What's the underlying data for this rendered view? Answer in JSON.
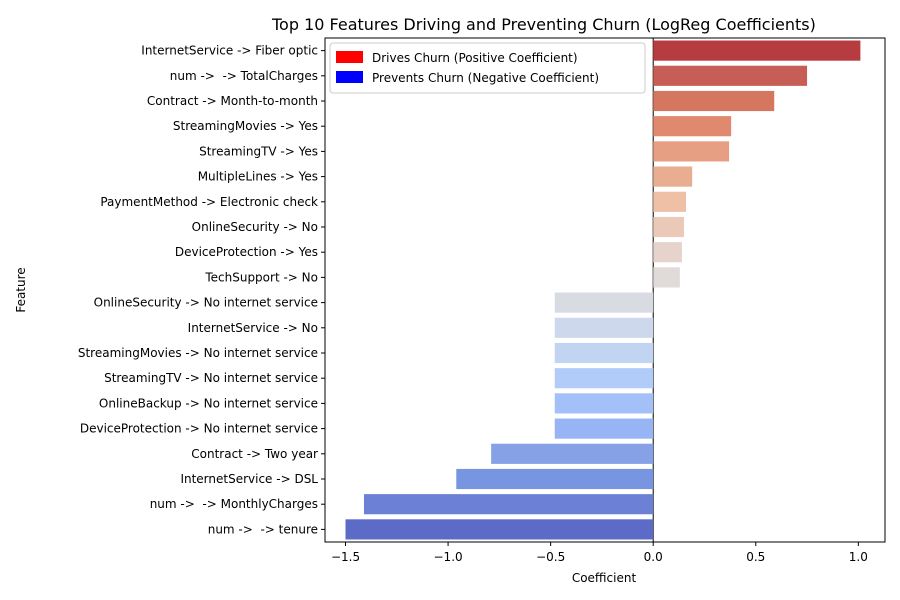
{
  "chart_data": {
    "type": "bar",
    "orientation": "horizontal",
    "title": "Top 10 Features Driving and Preventing Churn (LogReg Coefficients)",
    "xlabel": "Coefficient",
    "ylabel": "Feature",
    "xlim": [
      -1.6,
      1.13
    ],
    "xticks": [
      -1.5,
      -1.0,
      -0.5,
      0.0,
      0.5,
      1.0
    ],
    "xtick_labels": [
      "−1.5",
      "−1.0",
      "−0.5",
      "0.0",
      "0.5",
      "1.0"
    ],
    "grid": false,
    "legend_position": "top-left",
    "legend": [
      {
        "label": "Drives Churn (Positive Coefficient)",
        "color": "#ff0000"
      },
      {
        "label": "Prevents Churn (Negative Coefficient)",
        "color": "#0000ff"
      }
    ],
    "categories": [
      "InternetService -> Fiber optic",
      "num ->  -> TotalCharges",
      "Contract -> Month-to-month",
      "StreamingMovies -> Yes",
      "StreamingTV -> Yes",
      "MultipleLines -> Yes",
      "PaymentMethod -> Electronic check",
      "OnlineSecurity -> No",
      "DeviceProtection -> Yes",
      "TechSupport -> No",
      "OnlineSecurity -> No internet service",
      "InternetService -> No",
      "StreamingMovies -> No internet service",
      "StreamingTV -> No internet service",
      "OnlineBackup -> No internet service",
      "DeviceProtection -> No internet service",
      "Contract -> Two year",
      "InternetService -> DSL",
      "num ->  -> MonthlyCharges",
      "num ->  -> tenure"
    ],
    "values": [
      1.01,
      0.75,
      0.59,
      0.38,
      0.37,
      0.19,
      0.16,
      0.15,
      0.14,
      0.13,
      -0.48,
      -0.48,
      -0.48,
      -0.48,
      -0.48,
      -0.48,
      -0.79,
      -0.96,
      -1.41,
      -1.5
    ],
    "bar_colors": [
      "#b73c3f",
      "#c75e55",
      "#d5775f",
      "#e0896f",
      "#e69f83",
      "#e9ad92",
      "#efc0a6",
      "#ebc9b9",
      "#e6d3cb",
      "#e0dbd9",
      "#d9dbe2",
      "#cdd8ec",
      "#c1d4f2",
      "#b2ccf9",
      "#a3c0f8",
      "#97b5f5",
      "#86a1e8",
      "#7895e1",
      "#6c81d5",
      "#5b6bc7"
    ]
  }
}
